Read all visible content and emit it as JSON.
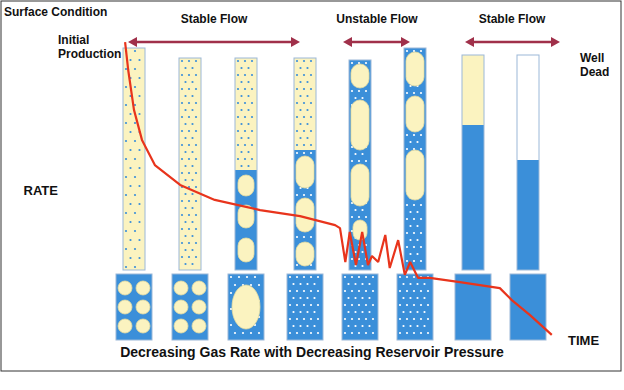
{
  "chart_data": {
    "type": "line",
    "title": "Decreasing Gas Rate with Decreasing Reservoir Pressure",
    "x_label": "TIME",
    "y_label": "RATE",
    "x": [
      3.4,
      4.1,
      5.4,
      7.2,
      10.1,
      15.8,
      23.6,
      33.8,
      42.8,
      50.7,
      51.8,
      53,
      54,
      55.4,
      56.8,
      58.1,
      59,
      60.4,
      62,
      63,
      64.9,
      66.4,
      67.6,
      69.4,
      72,
      78.8,
      87.8,
      90.5,
      94.6,
      99.5
    ],
    "values": [
      99.3,
      90,
      76.7,
      66.7,
      58.3,
      51.7,
      46.7,
      43.3,
      41.3,
      38.3,
      37.3,
      26,
      36,
      25,
      36,
      25,
      28,
      26,
      35,
      24,
      33.3,
      21.7,
      26,
      20.7,
      20.7,
      19.3,
      17.3,
      13.3,
      8.3,
      1.7
    ],
    "color": "#e8341c",
    "xlim": [
      0,
      100
    ],
    "ylim": [
      0,
      100
    ],
    "tick_labels": false,
    "grid": false,
    "annotations": [
      "Surface Condition",
      "Initial Production",
      "Stable Flow",
      "Unstable Flow",
      "Stable Flow",
      "Well Dead"
    ]
  }
}
